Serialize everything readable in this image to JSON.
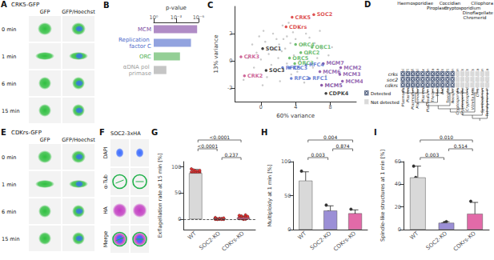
{
  "panel_A": {
    "label": "A",
    "title": "CRK5-GFP",
    "columns": [
      "GFP",
      "GFP/Hoechst"
    ],
    "rows": [
      "0 min",
      "1 min",
      "6 min",
      "15 min"
    ]
  },
  "panel_D": {
    "label": "D",
    "groups": [
      {
        "name": "Haemosporidiae",
        "species": [
          "Plasmodium berghei",
          "Plasmodium yoelii",
          "Plasmodium chabaudi",
          "Plasmodium knowlesi",
          "Plasmodium vivax",
          "Plasmodium falciparum"
        ]
      },
      {
        "name": "Piroplasm",
        "species": [
          "Theileria annulata",
          "Theileria parva",
          "Babesia bovis"
        ]
      },
      {
        "name": "Coccidian",
        "species": [
          "Toxoplasma gondii",
          "Neospora caninum"
        ]
      },
      {
        "name": "Cryptosporidium",
        "species": [
          "Cryptosporidium parvum",
          "Cryptosporidium hominis",
          "Cryptosporidium muris"
        ]
      },
      {
        "name": "Chromerid",
        "species": [
          "Vitrella brassicaformis",
          "Chromera velia"
        ]
      },
      {
        "name": "Dinoflagellate",
        "species": [
          "Symbiodinium minutum"
        ]
      },
      {
        "name": "Ciliophora",
        "species": [
          "Tetrahymena thermophila"
        ]
      }
    ],
    "genes": [
      "crks",
      "soc2",
      "cdkrs"
    ],
    "detected": [
      [
        true,
        true,
        true,
        true,
        true,
        true,
        true,
        true,
        true,
        true,
        true,
        false,
        false,
        false,
        false,
        false,
        false,
        false
      ],
      [
        true,
        true,
        true,
        true,
        true,
        true,
        true,
        true,
        true,
        true,
        true,
        false,
        false,
        false,
        false,
        false,
        false,
        false
      ],
      [
        true,
        true,
        true,
        true,
        true,
        true,
        true,
        true,
        true,
        true,
        true,
        false,
        false,
        false,
        false,
        false,
        false,
        false
      ]
    ],
    "legend": {
      "detected": "Detected",
      "not_detected": "Not detected"
    }
  },
  "panel_E": {
    "label": "E",
    "title": "CDKrs-GFP",
    "columns": [
      "GFP",
      "GFP/Hoechst"
    ],
    "rows": [
      "0 min",
      "1 min",
      "6 min",
      "15 min"
    ]
  },
  "panel_F": {
    "label": "F",
    "title": "SOC2-3xHA",
    "rows": [
      "DAPI",
      "α-Tub",
      "HA",
      "Merge"
    ]
  },
  "chart_data": [
    {
      "label": "B",
      "type": "bar",
      "orientation": "horizontal",
      "log": "x",
      "xlabel": "p-value",
      "categories": [
        "MCM",
        "Replication factor C",
        "ORC",
        "αDNA pol primase"
      ],
      "values": [
        1.5e-06,
        1e-05,
        0.0003,
        0.02
      ],
      "colors": [
        "#7b3fa0",
        "#4a66c9",
        "#4caf50",
        "#9e9e9e"
      ],
      "xlim": [
        1,
        1e-06
      ],
      "xticks": [
        {
          "value": 1,
          "label": "10⁰"
        },
        {
          "value": 0.001,
          "label": "10⁻³"
        },
        {
          "value": 1e-06,
          "label": "10⁻⁶"
        }
      ]
    },
    {
      "label": "C",
      "type": "scatter",
      "xlabel": "60% variance",
      "ylabel": "13% variance",
      "xlim": [
        -3,
        11
      ],
      "ylim": [
        -3,
        4
      ],
      "xticks": [
        0,
        4,
        8
      ],
      "yticks": [
        -2,
        0,
        2
      ],
      "background": {
        "color": "#bdbdbd",
        "x": [
          -1.5,
          -1.0,
          -0.8,
          -0.5,
          -0.2,
          0,
          0.3,
          0.5,
          0.7,
          0.9,
          1.1,
          1.2,
          1.4,
          1.5,
          1.7,
          1.8,
          2.0,
          2.1,
          2.2,
          2.4,
          2.5,
          2.6,
          2.8,
          3.0,
          3.0,
          3.2,
          3.4,
          3.5,
          3.7,
          3.8,
          4.0,
          4.2,
          4.4,
          4.5,
          4.8,
          5.0,
          5.2,
          5.4,
          5.6,
          6.0,
          6.2,
          6.5,
          6.8,
          7.0,
          7.5,
          7.8,
          8.2,
          8.5,
          -2.0,
          0.2
        ],
        "y": [
          0.2,
          1.2,
          -0.5,
          0.6,
          1.8,
          0.1,
          2.2,
          1.4,
          -1.2,
          0.5,
          1.0,
          -0.3,
          2.0,
          0.8,
          -0.8,
          1.6,
          0.2,
          1.2,
          -1.5,
          0.7,
          2.6,
          1.6,
          0.9,
          -0.2,
          1.8,
          2.8,
          1.3,
          -1.0,
          2.1,
          0.4,
          1.6,
          -0.8,
          2.4,
          0.0,
          1.2,
          -1.6,
          2.0,
          0.5,
          1.7,
          -0.5,
          1.3,
          0.2,
          2.2,
          0.9,
          -1.1,
          0.4,
          1.0,
          -0.2,
          -1.4,
          -1.8
        ]
      },
      "points": [
        {
          "label": "CRK5",
          "x": 3.6,
          "y": 3.2,
          "color": "#d62728"
        },
        {
          "label": "SOC2",
          "x": 6.1,
          "y": 3.4,
          "color": "#d62728"
        },
        {
          "label": "CDKrs",
          "x": 2.9,
          "y": 2.5,
          "color": "#d62728"
        },
        {
          "label": "SOC1",
          "x": 0.2,
          "y": 0.9,
          "color": "#111111"
        },
        {
          "label": "SOC3",
          "x": 0.6,
          "y": -0.7,
          "color": "#111111"
        },
        {
          "label": "CRK3",
          "x": -2.3,
          "y": 0.3,
          "color": "#c2417f"
        },
        {
          "label": "CRK2",
          "x": -1.9,
          "y": -1.1,
          "color": "#c2417f"
        },
        {
          "label": "ORC4",
          "x": 4.0,
          "y": 1.2,
          "color": "#4caf50"
        },
        {
          "label": "ORC1",
          "x": 5.9,
          "y": 1.0,
          "color": "#4caf50"
        },
        {
          "label": "ORC2",
          "x": 4.6,
          "y": 0.6,
          "color": "#4caf50"
        },
        {
          "label": "ORC5",
          "x": 3.3,
          "y": 0.2,
          "color": "#4caf50"
        },
        {
          "label": "ORC3",
          "x": 3.9,
          "y": -0.2,
          "color": "#4caf50"
        },
        {
          "label": "RFC5",
          "x": 2.5,
          "y": -0.5,
          "color": "#4a66c9"
        },
        {
          "label": "RFC3",
          "x": 3.3,
          "y": -0.5,
          "color": "#4a66c9"
        },
        {
          "label": "RFC2",
          "x": 3.5,
          "y": -1.3,
          "color": "#4a66c9"
        },
        {
          "label": "RFC4",
          "x": 5.2,
          "y": -0.3,
          "color": "#4a66c9"
        },
        {
          "label": "RFC1",
          "x": 5.6,
          "y": -1.3,
          "color": "#4a66c9"
        },
        {
          "label": "MCM7",
          "x": 7.2,
          "y": -0.2,
          "color": "#7b3fa0"
        },
        {
          "label": "MCM6",
          "x": 6.8,
          "y": -0.8,
          "color": "#7b3fa0"
        },
        {
          "label": "MCM2",
          "x": 9.2,
          "y": -0.5,
          "color": "#7b3fa0"
        },
        {
          "label": "MCM3",
          "x": 9.1,
          "y": -1.0,
          "color": "#7b3fa0"
        },
        {
          "label": "MCM4",
          "x": 9.4,
          "y": -1.5,
          "color": "#7b3fa0"
        },
        {
          "label": "MCM5",
          "x": 7.0,
          "y": -1.8,
          "color": "#6a2c91"
        },
        {
          "label": "CDPK4",
          "x": 7.5,
          "y": -2.4,
          "color": "#111111"
        }
      ]
    },
    {
      "label": "G",
      "type": "bar",
      "ylabel": "Exflagellation rate at 15 min [%]",
      "categories": [
        "WT",
        "SOC2-KO",
        "CDKrs-KO"
      ],
      "values": [
        88,
        1,
        3
      ],
      "errors": [
        7,
        1,
        3
      ],
      "colors": [
        "#d9d9d9",
        "#9b8fd6",
        "#e26aa8"
      ],
      "points": {
        "color": "#e03030",
        "values": [
          [
            96,
            94,
            92,
            91,
            90,
            90,
            89,
            88,
            88,
            87,
            86,
            86,
            85,
            84,
            83,
            82,
            80,
            78,
            76,
            93
          ],
          [
            0,
            0,
            0,
            1,
            0,
            2,
            0,
            1,
            0,
            0,
            3,
            0,
            1,
            0,
            2,
            0
          ],
          [
            2,
            5,
            0,
            8,
            3,
            1,
            6,
            0,
            4,
            2,
            7,
            1,
            3,
            0,
            5,
            2
          ]
        ]
      },
      "ylim": [
        -20,
        110
      ],
      "yticks": [
        0,
        50,
        100
      ],
      "reference_line": {
        "y": 0,
        "line_style": "dashed"
      },
      "comparisons": [
        {
          "from": "SOC2-KO",
          "to": "CDKrs-KO",
          "label": "0.237"
        },
        {
          "from": "WT",
          "to": "SOC2-KO",
          "label": "<0.0001"
        },
        {
          "from": "WT",
          "to": "CDKrs-KO",
          "label": "<0.0001"
        }
      ]
    },
    {
      "label": "H",
      "type": "bar",
      "ylabel": "Multiploidy at 1 min [%]",
      "categories": [
        "WT",
        "SOC2-KO",
        "CDKrs-KO"
      ],
      "values": [
        72,
        28,
        24
      ],
      "errors": [
        13,
        7,
        5
      ],
      "colors": [
        "#d9d9d9",
        "#9b8fd6",
        "#e26aa8"
      ],
      "points": {
        "color": "#333333",
        "values": [
          [
            86,
            66,
            62
          ],
          [
            36,
            26,
            22
          ],
          [
            30,
            20,
            22
          ]
        ]
      },
      "ylim": [
        0,
        100
      ],
      "yticks": [
        0,
        50,
        100
      ],
      "comparisons": [
        {
          "from": "WT",
          "to": "SOC2-KO",
          "label": "0.003"
        },
        {
          "from": "SOC2-KO",
          "to": "CDKrs-KO",
          "label": "0.874"
        },
        {
          "from": "WT",
          "to": "CDKrs-KO",
          "label": "0.004"
        }
      ]
    },
    {
      "label": "I",
      "type": "bar",
      "ylabel": "Spindle-like structures at 1 min [%]",
      "categories": [
        "WT",
        "SOC2-KO",
        "CDKrs-KO"
      ],
      "values": [
        46,
        6,
        14
      ],
      "errors": [
        10,
        1,
        10
      ],
      "colors": [
        "#d9d9d9",
        "#9b8fd6",
        "#e26aa8"
      ],
      "points": {
        "color": "#333333",
        "values": [
          [
            56,
            46,
            37
          ],
          [
            5,
            6,
            7
          ],
          [
            25,
            6,
            12
          ]
        ]
      },
      "ylim": [
        0,
        60
      ],
      "yticks": [
        0,
        20,
        40,
        60
      ],
      "comparisons": [
        {
          "from": "WT",
          "to": "SOC2-KO",
          "label": "0.003"
        },
        {
          "from": "SOC2-KO",
          "to": "CDKrs-KO",
          "label": "0.514"
        },
        {
          "from": "WT",
          "to": "CDKrs-KO",
          "label": "0.010"
        }
      ]
    }
  ]
}
